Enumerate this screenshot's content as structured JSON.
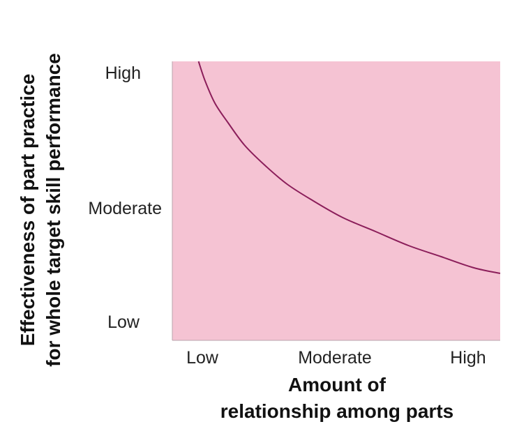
{
  "chart_data": {
    "type": "line",
    "title": "",
    "xlabel": [
      "Amount of",
      "relationship among parts"
    ],
    "ylabel": [
      "Effectiveness of part practice",
      "for whole target skill performance"
    ],
    "x_categories": [
      "Low",
      "Moderate",
      "High"
    ],
    "y_categories": [
      "Low",
      "Moderate",
      "High"
    ],
    "xlim": [
      0,
      1
    ],
    "ylim": [
      0,
      1
    ],
    "plot_background": "#f5c3d3",
    "line_color": "#8b1e5a",
    "grid": false,
    "legend": "none",
    "series": [
      {
        "x": [
          0.08,
          0.1,
          0.13,
          0.17,
          0.22,
          0.28,
          0.35,
          0.43,
          0.52,
          0.62,
          0.72,
          0.82,
          0.92,
          1.0
        ],
        "y": [
          1.0,
          0.93,
          0.85,
          0.78,
          0.7,
          0.63,
          0.56,
          0.5,
          0.44,
          0.39,
          0.34,
          0.3,
          0.26,
          0.24
        ]
      }
    ]
  }
}
